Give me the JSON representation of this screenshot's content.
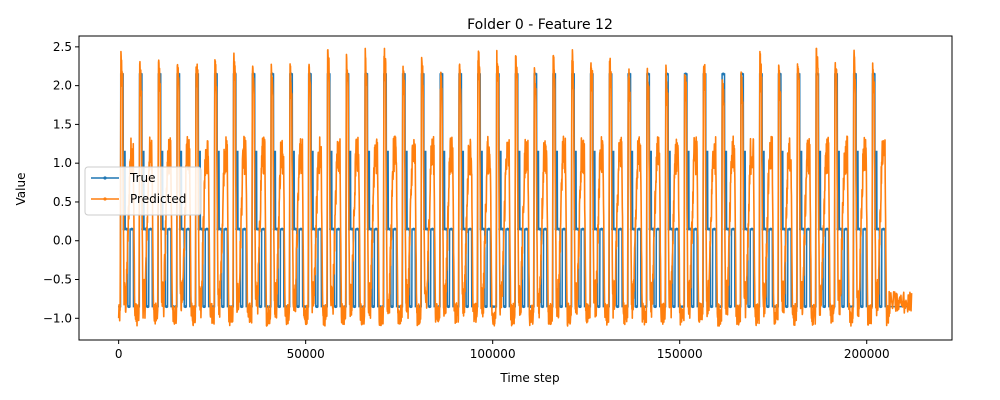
{
  "chart_data": {
    "type": "line",
    "title": "Folder 0 - Feature 12",
    "xlabel": "Time step",
    "ylabel": "Value",
    "xlim": [
      -10600,
      222800
    ],
    "ylim": [
      -1.28,
      2.64
    ],
    "x_ticks": [
      0,
      50000,
      100000,
      150000,
      200000
    ],
    "y_ticks": [
      -1.0,
      -0.5,
      0.0,
      0.5,
      1.0,
      1.5,
      2.0,
      2.5
    ],
    "x_tick_labels": [
      "0",
      "50000",
      "100000",
      "150000",
      "200000"
    ],
    "y_tick_labels": [
      "−1.0",
      "−0.5",
      "0.0",
      "0.5",
      "1.0",
      "1.5",
      "2.0",
      "2.5"
    ],
    "grid": false,
    "legend_position": "center-left",
    "x_range": [
      0,
      212000
    ],
    "cycle_count": 41,
    "series": [
      {
        "name": "True",
        "color": "#1f77b4",
        "marker": "dot",
        "levels": [
          -0.85,
          0.15,
          1.15,
          2.15
        ],
        "active_until": 206000,
        "tail_value": -0.85
      },
      {
        "name": "Predicted",
        "color": "#ff7f0e",
        "marker": "dot",
        "range": [
          -1.1,
          2.48
        ],
        "active_until": 206000,
        "tail_range": [
          -0.95,
          -0.65
        ]
      }
    ]
  }
}
